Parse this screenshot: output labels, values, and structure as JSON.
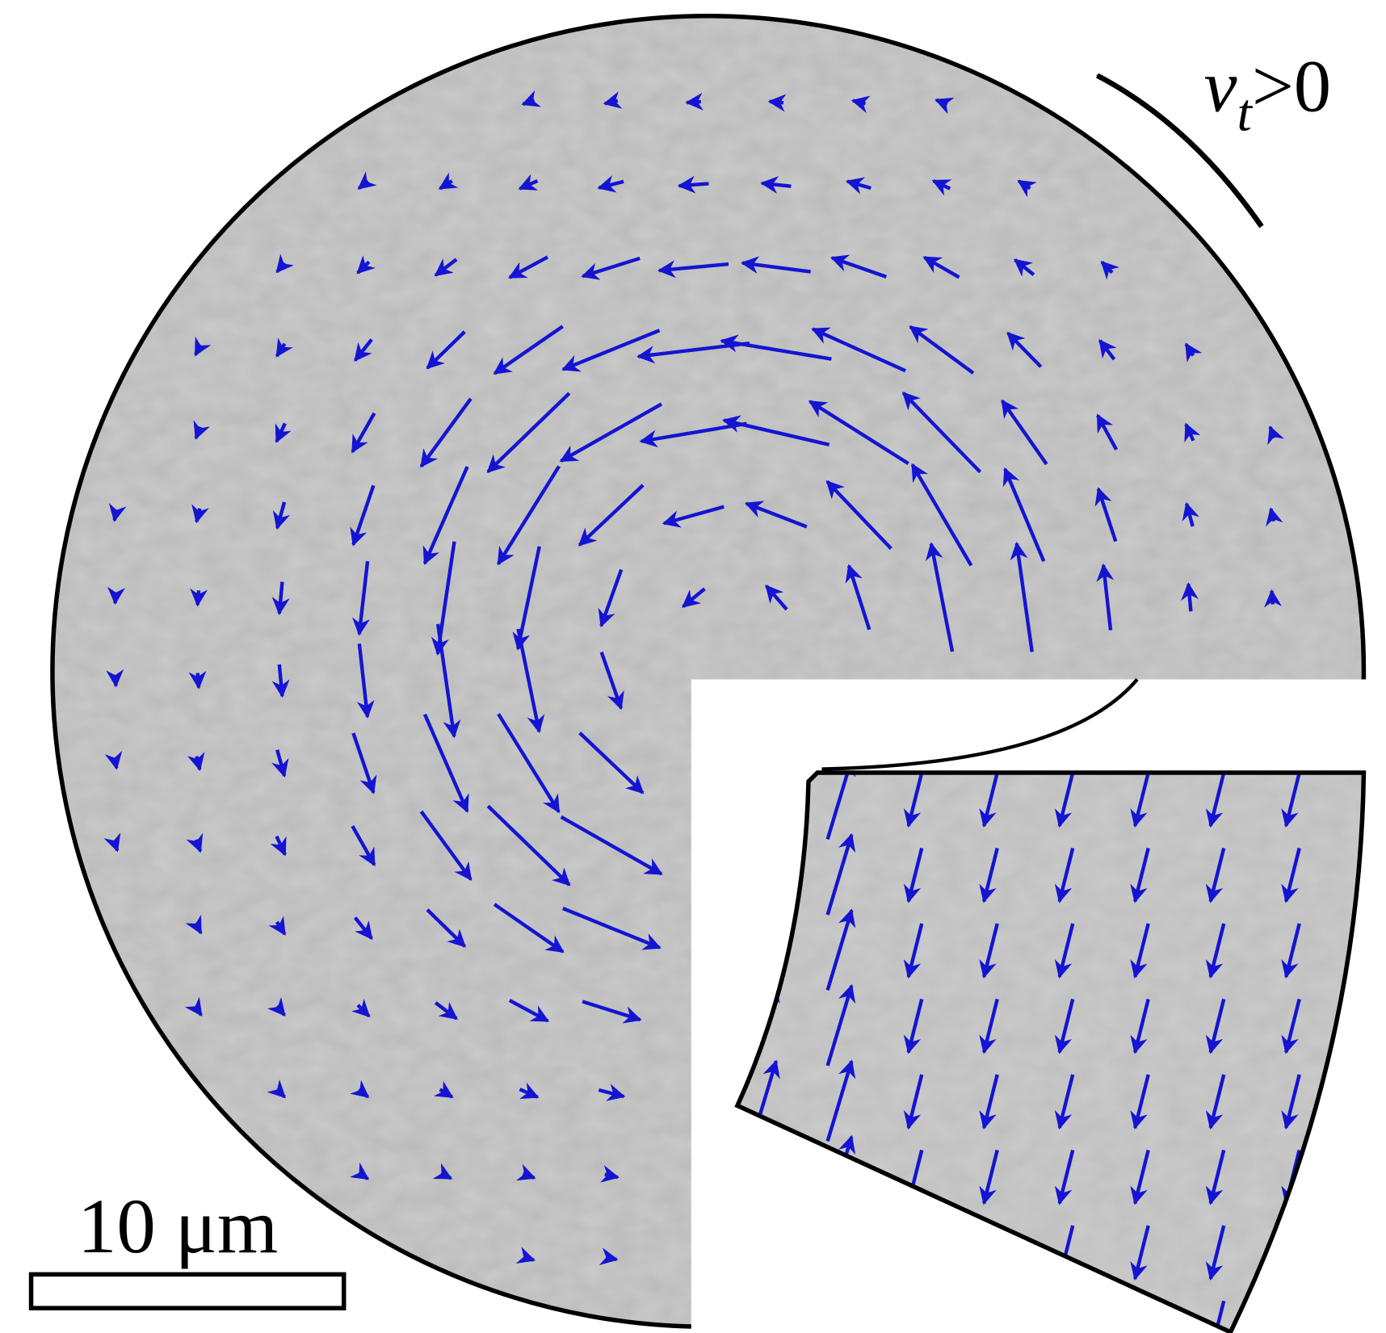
{
  "direction_label": {
    "symbol": "v",
    "subscript": "t",
    "condition": ">0"
  },
  "scale_bar": {
    "label": "10 μm"
  }
}
